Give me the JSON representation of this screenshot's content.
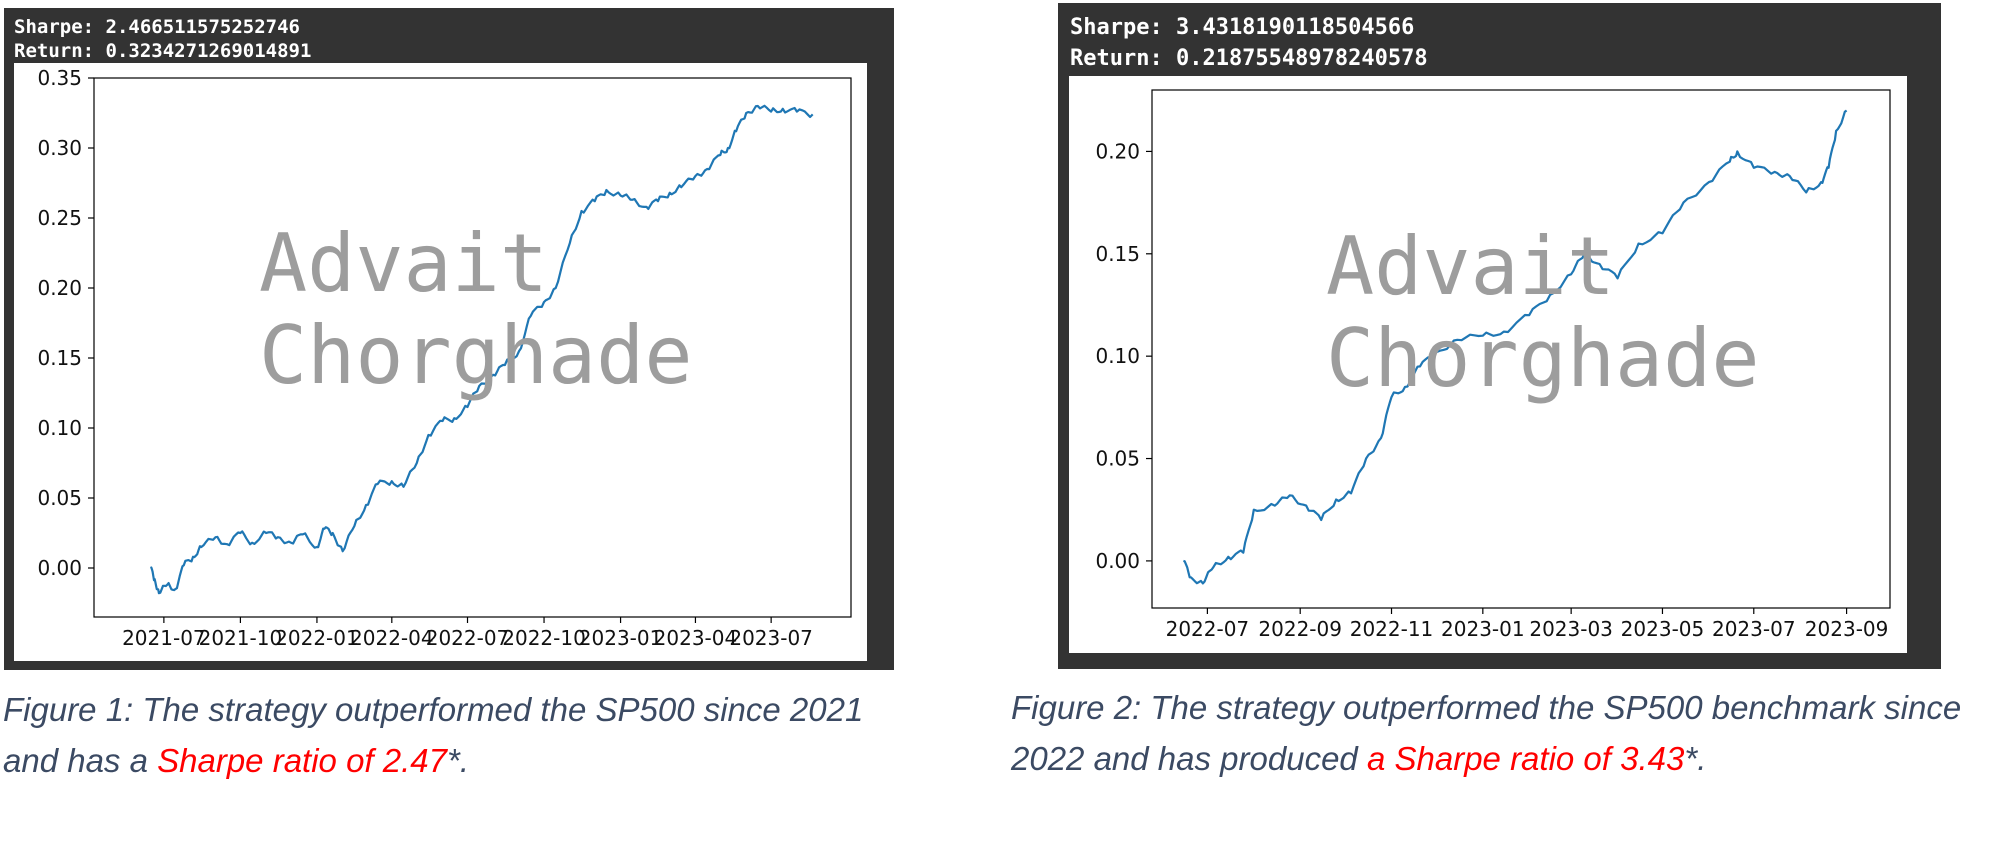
{
  "figures": [
    {
      "header": {
        "sharpe_line": "Sharpe: 2.466511575252746",
        "return_line": "Return: 0.3234271269014891"
      },
      "watermark": [
        "Advait",
        "Chorghade"
      ],
      "caption": {
        "text": "Figure 1: The strategy outperformed the SP500 since 2021 and has a ",
        "highlight": "Sharpe ratio of 2.47",
        "tail": "*."
      }
    },
    {
      "header": {
        "sharpe_line": "Sharpe: 3.4318190118504566",
        "return_line": "Return: 0.21875548978240578"
      },
      "watermark": [
        "Advait",
        "Chorghade"
      ],
      "caption": {
        "text": "Figure 2: The strategy outperformed the SP500 benchmark since 2022 and has produced ",
        "highlight": "a Sharpe ratio of 3.43",
        "tail": "*."
      }
    }
  ],
  "colors": {
    "line": "#1f77b4",
    "panel_bg": "#333333",
    "highlight": "#ff0000",
    "caption": "#3b4a63",
    "watermark": "#9d9d9d"
  },
  "chart_data": [
    {
      "type": "line",
      "ylim": [
        -0.035,
        0.35
      ],
      "xlim": [
        "2021-04-08",
        "2023-10-05"
      ],
      "yticks": [
        0.0,
        0.05,
        0.1,
        0.15,
        0.2,
        0.25,
        0.3,
        0.35
      ],
      "ytick_labels": [
        "0.00",
        "0.05",
        "0.10",
        "0.15",
        "0.20",
        "0.25",
        "0.30",
        "0.35"
      ],
      "xticks": [
        "2021-07-01",
        "2021-10-01",
        "2022-01-01",
        "2022-04-01",
        "2022-07-01",
        "2022-10-01",
        "2023-01-01",
        "2023-04-01",
        "2023-07-01"
      ],
      "xtick_labels": [
        "2021-07",
        "2021-10",
        "2022-01",
        "2022-04",
        "2022-07",
        "2022-10",
        "2023-01",
        "2023-04",
        "2023-07"
      ],
      "grid": false,
      "series": [
        {
          "x": [
            "2021-06-15",
            "2021-06-20",
            "2021-06-25",
            "2021-07-05",
            "2021-07-15",
            "2021-07-25",
            "2021-08-05",
            "2021-08-15",
            "2021-09-01",
            "2021-09-15",
            "2021-10-01",
            "2021-10-15",
            "2021-11-01",
            "2021-11-15",
            "2021-12-01",
            "2021-12-15",
            "2022-01-01",
            "2022-01-10",
            "2022-01-20",
            "2022-02-01",
            "2022-02-15",
            "2022-03-01",
            "2022-03-15",
            "2022-04-01",
            "2022-04-15",
            "2022-05-01",
            "2022-05-15",
            "2022-06-01",
            "2022-06-15",
            "2022-07-01",
            "2022-07-15",
            "2022-08-01",
            "2022-08-15",
            "2022-09-01",
            "2022-09-15",
            "2022-10-01",
            "2022-10-15",
            "2022-11-01",
            "2022-11-15",
            "2022-12-01",
            "2022-12-15",
            "2023-01-01",
            "2023-01-15",
            "2023-02-01",
            "2023-02-15",
            "2023-03-01",
            "2023-03-15",
            "2023-04-01",
            "2023-04-15",
            "2023-05-01",
            "2023-05-10",
            "2023-05-20",
            "2023-06-01",
            "2023-06-15",
            "2023-07-01",
            "2023-07-15",
            "2023-08-01",
            "2023-08-20"
          ],
          "values": [
            0.0,
            -0.008,
            -0.018,
            -0.012,
            -0.015,
            0.002,
            0.008,
            0.015,
            0.022,
            0.017,
            0.025,
            0.018,
            0.025,
            0.022,
            0.018,
            0.024,
            0.015,
            0.028,
            0.025,
            0.012,
            0.03,
            0.045,
            0.06,
            0.062,
            0.058,
            0.075,
            0.095,
            0.105,
            0.107,
            0.115,
            0.13,
            0.138,
            0.145,
            0.155,
            0.18,
            0.19,
            0.2,
            0.232,
            0.255,
            0.262,
            0.27,
            0.266,
            0.263,
            0.258,
            0.262,
            0.268,
            0.272,
            0.28,
            0.285,
            0.295,
            0.3,
            0.312,
            0.325,
            0.33,
            0.326,
            0.328,
            0.326,
            0.324
          ]
        }
      ]
    },
    {
      "type": "line",
      "ylim": [
        -0.023,
        0.23
      ],
      "xlim": [
        "2022-05-25",
        "2023-09-30"
      ],
      "yticks": [
        0.0,
        0.05,
        0.1,
        0.15,
        0.2
      ],
      "ytick_labels": [
        "0.00",
        "0.05",
        "0.10",
        "0.15",
        "0.20"
      ],
      "xticks": [
        "2022-07-01",
        "2022-09-01",
        "2022-11-01",
        "2023-01-01",
        "2023-03-01",
        "2023-05-01",
        "2023-07-01",
        "2023-09-01"
      ],
      "xtick_labels": [
        "2022-07",
        "2022-09",
        "2022-11",
        "2023-01",
        "2023-03",
        "2023-05",
        "2023-07",
        "2023-09"
      ],
      "grid": false,
      "series": [
        {
          "x": [
            "2022-06-15",
            "2022-06-20",
            "2022-06-28",
            "2022-07-05",
            "2022-07-15",
            "2022-07-25",
            "2022-08-01",
            "2022-08-15",
            "2022-08-25",
            "2022-09-05",
            "2022-09-15",
            "2022-09-25",
            "2022-10-05",
            "2022-10-15",
            "2022-10-25",
            "2022-11-01",
            "2022-11-10",
            "2022-11-20",
            "2022-12-01",
            "2022-12-15",
            "2023-01-01",
            "2023-01-15",
            "2023-02-01",
            "2023-02-15",
            "2023-03-01",
            "2023-03-10",
            "2023-03-20",
            "2023-04-01",
            "2023-04-15",
            "2023-05-01",
            "2023-05-15",
            "2023-06-01",
            "2023-06-15",
            "2023-06-20",
            "2023-07-01",
            "2023-07-15",
            "2023-07-25",
            "2023-08-05",
            "2023-08-15",
            "2023-08-20",
            "2023-08-25",
            "2023-09-01"
          ],
          "values": [
            0.0,
            -0.008,
            -0.011,
            -0.003,
            0.002,
            0.004,
            0.025,
            0.027,
            0.032,
            0.027,
            0.02,
            0.03,
            0.033,
            0.05,
            0.06,
            0.08,
            0.085,
            0.095,
            0.102,
            0.108,
            0.11,
            0.112,
            0.12,
            0.13,
            0.14,
            0.15,
            0.145,
            0.138,
            0.155,
            0.16,
            0.175,
            0.185,
            0.195,
            0.2,
            0.192,
            0.19,
            0.188,
            0.18,
            0.185,
            0.192,
            0.21,
            0.22
          ]
        }
      ]
    }
  ]
}
